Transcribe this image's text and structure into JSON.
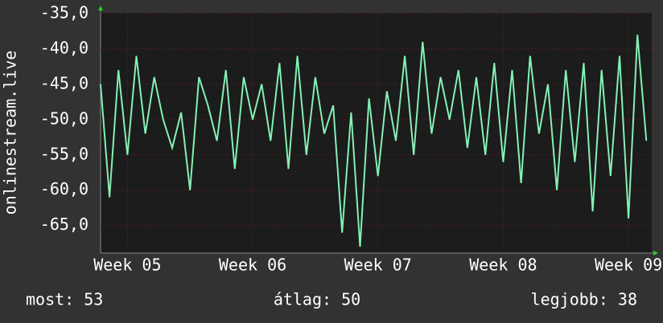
{
  "chart_data": {
    "type": "line",
    "y_label": "onlinestream.live",
    "x": [
      -1.5,
      -1,
      -0.5,
      0,
      0.5,
      1,
      1.5,
      2,
      2.5,
      3,
      3.5,
      4,
      4.5,
      5,
      5.5,
      6,
      6.5,
      7,
      7.5,
      8,
      8.5,
      9,
      9.5,
      10,
      10.5,
      11,
      11.5,
      12,
      12.5,
      13,
      13.5,
      14,
      14.5,
      15,
      15.5,
      16,
      16.5,
      17,
      17.5,
      18,
      18.5,
      19,
      19.5,
      20,
      20.5,
      21,
      21.5,
      22,
      22.5,
      23,
      23.5,
      24,
      24.5,
      25,
      25.5,
      26,
      26.5,
      27,
      27.5,
      28,
      28.5,
      29
    ],
    "series": [
      {
        "color": "#80f2b4",
        "values": [
          -45,
          -61,
          -43,
          -55,
          -41,
          -52,
          -44,
          -50,
          -54,
          -49,
          -60,
          -44,
          -48,
          -53,
          -43,
          -57,
          -44,
          -50,
          -45,
          -53,
          -42,
          -57,
          -41,
          -55,
          -44,
          -52,
          -48,
          -66,
          -49,
          -68,
          -47,
          -58,
          -46,
          -53,
          -41,
          -55,
          -39,
          -52,
          -44,
          -50,
          -43,
          -54,
          -44,
          -55,
          -42,
          -56,
          -43,
          -59,
          -41,
          -52,
          -45,
          -60,
          -43,
          -56,
          -42,
          -63,
          -43,
          -58,
          -41,
          -64,
          -38,
          -53
        ]
      }
    ],
    "xlim": [
      -1.5,
      29.3
    ],
    "xticks": [
      {
        "value": 0,
        "label": "Week 05"
      },
      {
        "value": 7,
        "label": "Week 06"
      },
      {
        "value": 14,
        "label": "Week 07"
      },
      {
        "value": 21,
        "label": "Week 08"
      },
      {
        "value": 28,
        "label": "Week 09"
      }
    ],
    "ylim": [
      -68.9,
      -34.9
    ],
    "yticks": [
      {
        "value": -35,
        "label": "-35,0"
      },
      {
        "value": -40,
        "label": "-40,0"
      },
      {
        "value": -45,
        "label": "-45,0"
      },
      {
        "value": -50,
        "label": "-50,0"
      },
      {
        "value": -55,
        "label": "-55,0"
      },
      {
        "value": -60,
        "label": "-60,0"
      },
      {
        "value": -65,
        "label": "-65,0"
      }
    ],
    "grid": true,
    "footer": [
      "most: 53",
      "átlag: 50",
      "legjobb: 38"
    ]
  }
}
